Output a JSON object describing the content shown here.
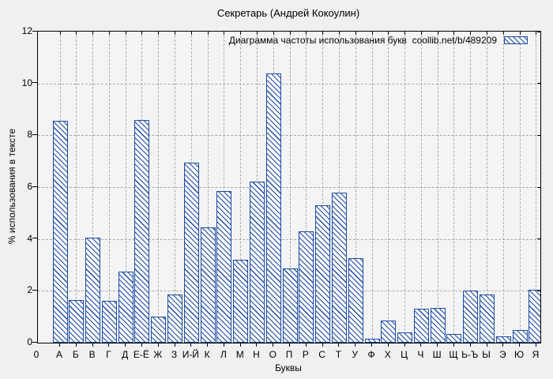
{
  "chart_data": {
    "type": "bar",
    "title": "Секретарь (Андрей Кокоулин)",
    "legend_label": "Диаграмма частоты использования букв  coollib.net/b/489209",
    "xlabel": "Буквы",
    "ylabel": "% использования в тексте",
    "x_origin_label": "0",
    "categories": [
      "А",
      "Б",
      "В",
      "Г",
      "Д",
      "Е-Ё",
      "Ж",
      "З",
      "И-Й",
      "К",
      "Л",
      "М",
      "Н",
      "О",
      "П",
      "Р",
      "С",
      "Т",
      "У",
      "Ф",
      "Х",
      "Ц",
      "Ч",
      "Ш",
      "Щ",
      "Ь-Ъ",
      "Ы",
      "Э",
      "Ю",
      "Я"
    ],
    "values": [
      8.55,
      1.65,
      4.05,
      1.6,
      2.75,
      8.6,
      1.0,
      1.85,
      6.95,
      4.45,
      5.85,
      3.2,
      6.2,
      10.4,
      2.85,
      4.3,
      5.3,
      5.8,
      3.25,
      0.15,
      0.85,
      0.4,
      1.3,
      1.35,
      0.35,
      2.0,
      1.85,
      0.25,
      0.5,
      2.05
    ],
    "y_ticks": [
      0,
      2,
      4,
      6,
      8,
      10,
      12
    ],
    "ylim": [
      0,
      12
    ],
    "grid": true,
    "legend_position": "top-right",
    "bar_style": "hatched-diagonal",
    "colors": {
      "bar": "#1b4aa2",
      "grid": "#a9a9a9",
      "background": "#f0f0f0",
      "plot_background": "#f4f4f4",
      "text": "#000000"
    }
  }
}
